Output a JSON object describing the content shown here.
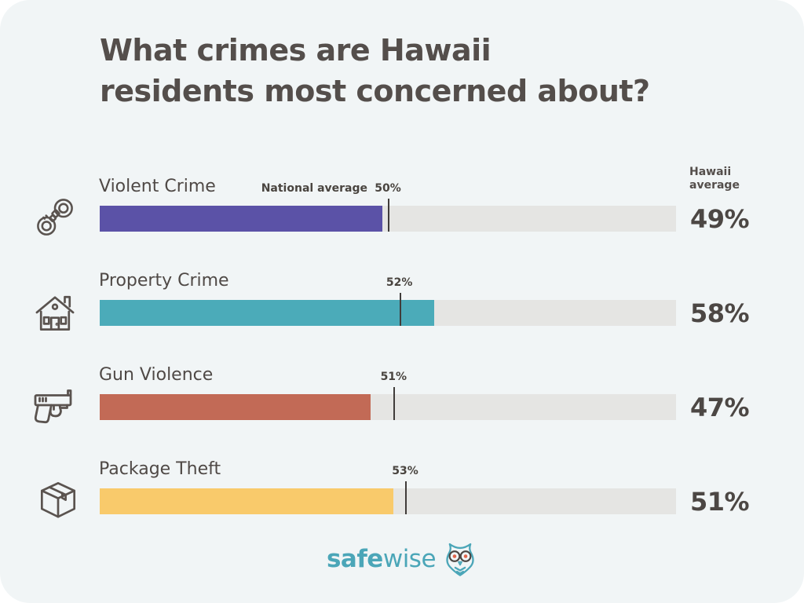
{
  "title": {
    "line1": "What crimes are Hawaii",
    "line2": "residents most concerned about?"
  },
  "axis": {
    "hawaii_average_label": "Hawaii average",
    "national_average_label": "National average"
  },
  "rows": [
    {
      "label": "Violent Crime",
      "hawaii": 49,
      "national": 50,
      "hawaii_label": "49%",
      "national_label": "50%",
      "color": "#5b52a7",
      "icon": "handcuffs-icon"
    },
    {
      "label": "Property Crime",
      "hawaii": 58,
      "national": 52,
      "hawaii_label": "58%",
      "national_label": "52%",
      "color": "#4babb9",
      "icon": "house-icon"
    },
    {
      "label": "Gun Violence",
      "hawaii": 47,
      "national": 51,
      "hawaii_label": "47%",
      "national_label": "51%",
      "color": "#c26a56",
      "icon": "pistol-icon"
    },
    {
      "label": "Package Theft",
      "hawaii": 51,
      "national": 53,
      "hawaii_label": "51%",
      "national_label": "53%",
      "color": "#f9ca6b",
      "icon": "package-icon"
    }
  ],
  "chart_data": {
    "type": "bar",
    "orientation": "horizontal",
    "title": "What crimes are Hawaii residents most concerned about?",
    "categories": [
      "Violent Crime",
      "Property Crime",
      "Gun Violence",
      "Package Theft"
    ],
    "series": [
      {
        "name": "Hawaii average",
        "values": [
          49,
          58,
          47,
          51
        ],
        "unit": "%",
        "style": "bar"
      },
      {
        "name": "National average",
        "values": [
          50,
          52,
          51,
          53
        ],
        "unit": "%",
        "style": "tick-marker"
      }
    ],
    "xlim": [
      0,
      100
    ],
    "bar_colors": [
      "#5b52a7",
      "#4babb9",
      "#c26a56",
      "#f9ca6b"
    ],
    "track_color": "#e5e5e3",
    "background": "#f1f5f6",
    "grid": false,
    "legend_position": "inline-labels"
  },
  "footer": {
    "brand_bold": "safe",
    "brand_light": "wise",
    "brand_color": "#4ba6b8",
    "logo_icon": "owl-icon"
  }
}
